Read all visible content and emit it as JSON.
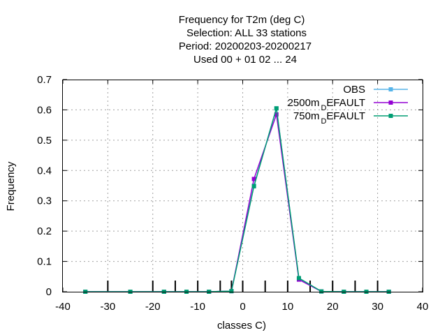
{
  "chart_data": {
    "type": "line",
    "title_lines": [
      "Frequency  for T2m (deg C)",
      "Selection: ALL     33 stations",
      "Period: 20200203-20200217",
      "Used  00 + 01 02 ... 24"
    ],
    "xlabel": "classes C)",
    "ylabel": "Frequency",
    "xlim": [
      -40,
      40
    ],
    "ylim": [
      0,
      0.7
    ],
    "xticks": [
      -40,
      -30,
      -20,
      -10,
      0,
      10,
      20,
      30,
      40
    ],
    "yticks": [
      0,
      0.1,
      0.2,
      0.3,
      0.4,
      0.5,
      0.6,
      0.7
    ],
    "xtick_labels": [
      "-40",
      "-30",
      "-20",
      "-10",
      "0",
      "10",
      "20",
      "30",
      "40"
    ],
    "ytick_labels": [
      "0",
      "0.1",
      "0.2",
      "0.3",
      "0.4",
      "0.5",
      "0.6",
      "0.7"
    ],
    "class_boundaries": [
      -30,
      -20,
      -15,
      -10,
      -5,
      -2.5,
      0,
      5,
      10,
      15,
      20,
      25,
      30
    ],
    "grid": true,
    "legend_position": "top-right",
    "series": [
      {
        "name": "OBS",
        "color": "#56b4e9",
        "x": [
          -35,
          -25,
          -17.5,
          -12.5,
          -7.5,
          -2.5,
          2.5,
          7.5,
          12.5,
          17.5,
          22.5,
          27.5,
          32.5
        ],
        "y": [
          0,
          0,
          0,
          0,
          0,
          0.002,
          0.35,
          0.605,
          0.042,
          0.001,
          0,
          0,
          0
        ]
      },
      {
        "name": "2500m_DEFAULT",
        "legend_main": "2500m",
        "legend_sub": "D",
        "legend_tail": "EFAULT",
        "color": "#9400d3",
        "x": [
          -35,
          -25,
          -17.5,
          -12.5,
          -7.5,
          -2.5,
          2.5,
          7.5,
          12.5,
          17.5,
          22.5,
          27.5,
          32.5
        ],
        "y": [
          0,
          0,
          0,
          0,
          0,
          0.002,
          0.372,
          0.585,
          0.04,
          0.001,
          0,
          0,
          0
        ]
      },
      {
        "name": "750m_DEFAULT",
        "legend_main": "750m",
        "legend_sub": "D",
        "legend_tail": "EFAULT",
        "color": "#009e73",
        "x": [
          -35,
          -25,
          -17.5,
          -12.5,
          -7.5,
          -2.5,
          2.5,
          7.5,
          12.5,
          17.5,
          22.5,
          27.5,
          32.5
        ],
        "y": [
          0,
          0,
          0,
          0,
          0,
          0.002,
          0.348,
          0.605,
          0.045,
          0.001,
          0,
          0,
          0
        ]
      }
    ]
  }
}
